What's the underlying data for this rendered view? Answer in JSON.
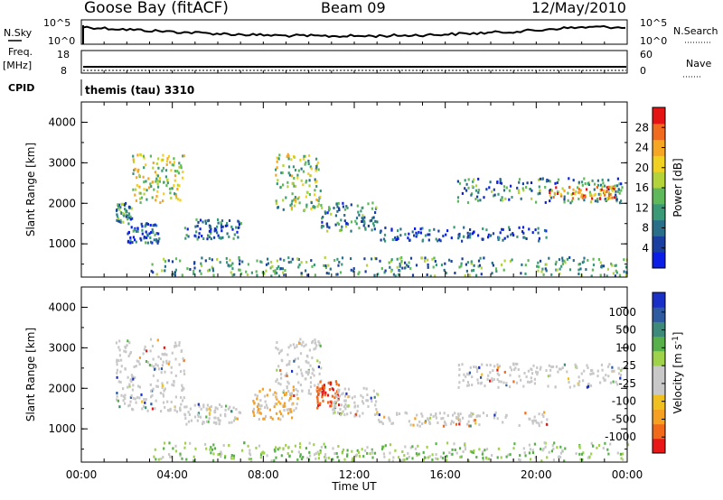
{
  "header": {
    "station": "Goose Bay (fitACF)",
    "beam": "Beam 09",
    "date": "12/May/2010"
  },
  "panels": {
    "nsky": {
      "left_label": "N.Sky",
      "right_label": "N.Search",
      "left_ticks": [
        "10^5",
        "10^0"
      ],
      "right_ticks": [
        "10^5",
        "10^0"
      ]
    },
    "freq": {
      "left_label_1": "Freq.",
      "left_label_2": "[MHz]",
      "left_ticks": [
        "18",
        "8"
      ],
      "right_label": "Nave",
      "right_ticks": [
        "60",
        "0"
      ]
    },
    "cpid": {
      "label": "CPID",
      "program": "themis (tau) 3310"
    }
  },
  "chart_data": [
    {
      "type": "heatmap",
      "name": "power",
      "xlabel": "",
      "ylabel": "Slant Range [km]",
      "ylim": [
        180,
        4500
      ],
      "xlim": [
        0,
        24
      ],
      "yticks": [
        1000,
        2000,
        3000,
        4000
      ],
      "colorbar": {
        "label": "Power [dB]",
        "ticks": [
          "4",
          "8",
          "12",
          "16",
          "20",
          "24",
          "28"
        ],
        "colors": [
          "#0a1ee6",
          "#1a3fa0",
          "#2a6f8a",
          "#3a9a78",
          "#5fb85a",
          "#b4d23a",
          "#f0d020",
          "#f5a623",
          "#f06b1e",
          "#e51414"
        ]
      },
      "echo_regions": [
        {
          "t0": 1.5,
          "t1": 2.2,
          "r0": 1500,
          "r1": 2000,
          "level": 0.3
        },
        {
          "t0": 2.2,
          "t1": 4.5,
          "r0": 2000,
          "r1": 3200,
          "level": 0.55
        },
        {
          "t0": 2.0,
          "t1": 3.5,
          "r0": 1000,
          "r1": 1500,
          "level": 0.2
        },
        {
          "t0": 4.5,
          "t1": 7.0,
          "r0": 1100,
          "r1": 1600,
          "level": 0.2
        },
        {
          "t0": 8.5,
          "t1": 10.5,
          "r0": 1800,
          "r1": 3200,
          "level": 0.5
        },
        {
          "t0": 10.5,
          "t1": 13.0,
          "r0": 1300,
          "r1": 2000,
          "level": 0.3
        },
        {
          "t0": 13.0,
          "t1": 20.5,
          "r0": 1050,
          "r1": 1400,
          "level": 0.15
        },
        {
          "t0": 16.5,
          "t1": 23.8,
          "r0": 2000,
          "r1": 2600,
          "level": 0.3
        },
        {
          "t0": 20.5,
          "t1": 23.5,
          "r0": 2100,
          "r1": 2400,
          "level": 0.75
        },
        {
          "t0": 3.0,
          "t1": 24.0,
          "r0": 190,
          "r1": 650,
          "level": 0.35
        }
      ]
    },
    {
      "type": "heatmap",
      "name": "velocity",
      "xlabel": "Time UT",
      "ylabel": "Slant Range [km]",
      "ylim": [
        180,
        4500
      ],
      "xlim": [
        0,
        24
      ],
      "yticks": [
        1000,
        2000,
        3000,
        4000
      ],
      "xticks": [
        "00:00",
        "04:00",
        "08:00",
        "12:00",
        "16:00",
        "20:00",
        "00:00"
      ],
      "colorbar": {
        "label": "Velocity [m s^-1]",
        "ticks": [
          "1000",
          "500",
          "100",
          "25",
          "-25",
          "-100",
          "-500",
          "-1000"
        ],
        "colors": [
          "#1a2fc8",
          "#2e5aa0",
          "#3d8a7a",
          "#58b04a",
          "#9ed24a",
          "#c8c8c8",
          "#c8c8c8",
          "#f0c020",
          "#f5a020",
          "#f06a1a",
          "#e81818"
        ]
      },
      "echo_regions": [
        {
          "t0": 1.5,
          "t1": 4.5,
          "r0": 1400,
          "r1": 3200,
          "v": "gray"
        },
        {
          "t0": 4.5,
          "t1": 7.0,
          "r0": 1100,
          "r1": 1600,
          "v": "gray"
        },
        {
          "t0": 8.5,
          "t1": 10.5,
          "r0": 1800,
          "r1": 3200,
          "v": "gray"
        },
        {
          "t0": 7.5,
          "t1": 9.5,
          "r0": 1200,
          "r1": 2000,
          "v": "orange"
        },
        {
          "t0": 10.3,
          "t1": 11.3,
          "r0": 1500,
          "r1": 2200,
          "v": "red"
        },
        {
          "t0": 11.0,
          "t1": 13.0,
          "r0": 1300,
          "r1": 2000,
          "v": "gray"
        },
        {
          "t0": 13.0,
          "t1": 20.5,
          "r0": 1050,
          "r1": 1400,
          "v": "gray"
        },
        {
          "t0": 16.5,
          "t1": 23.8,
          "r0": 2000,
          "r1": 2600,
          "v": "gray"
        },
        {
          "t0": 3.0,
          "t1": 24.0,
          "r0": 190,
          "r1": 650,
          "v": "green"
        }
      ]
    }
  ]
}
